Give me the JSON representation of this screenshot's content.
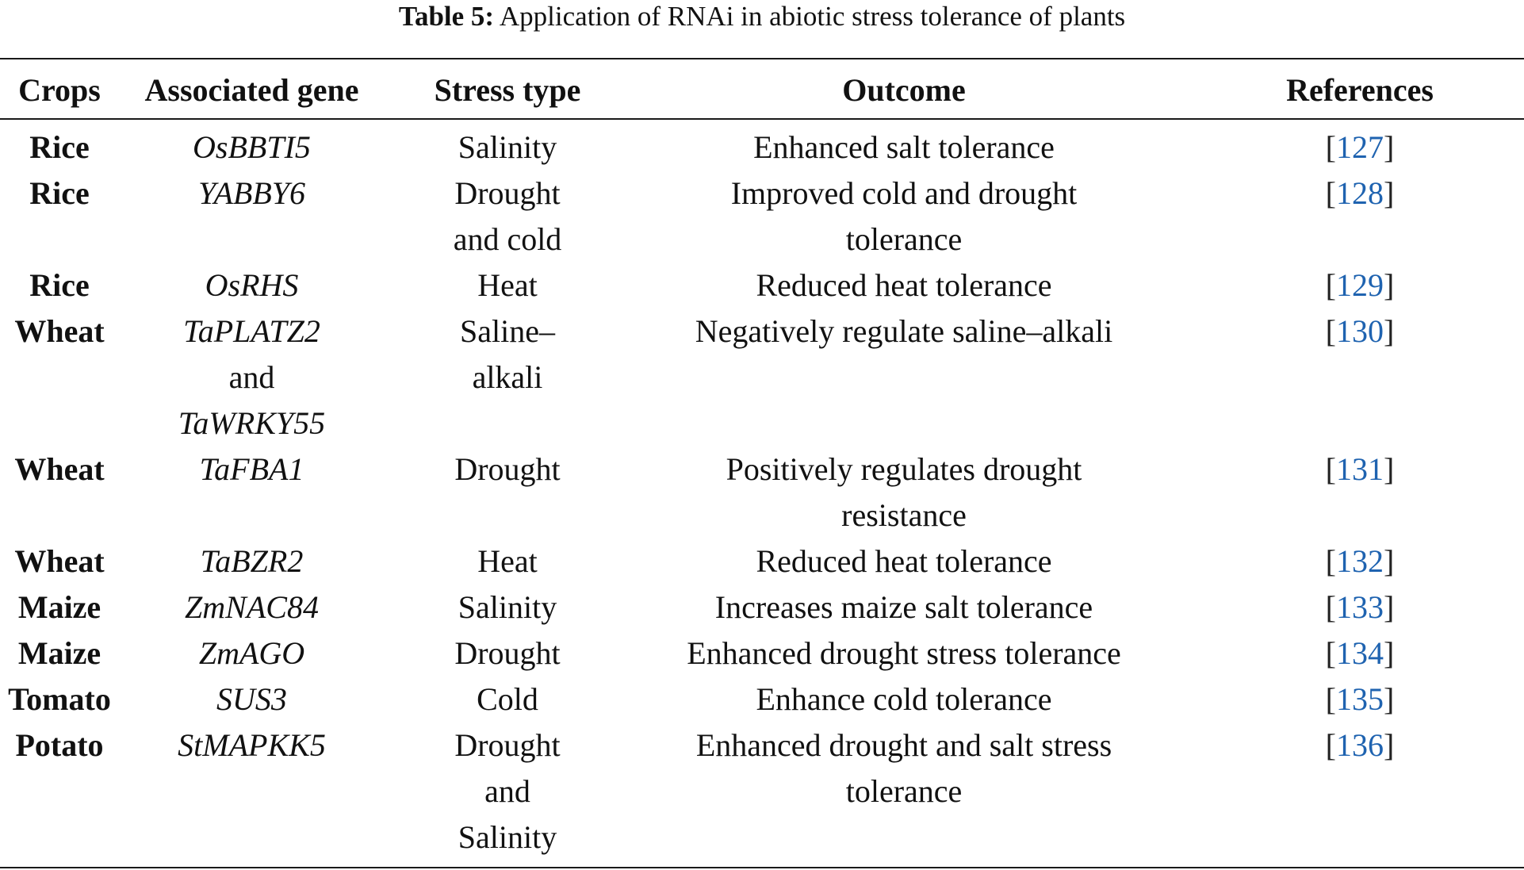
{
  "caption": {
    "label": "Table 5:",
    "text": "Application of RNAi in abiotic stress tolerance of plants"
  },
  "headers": {
    "crop": "Crops",
    "gene": "Associated gene",
    "stress": "Stress type",
    "outcome": "Outcome",
    "references": "References"
  },
  "rows": [
    {
      "crop": "Rice",
      "gene": [
        "OsBBTI5"
      ],
      "stress": [
        "Salinity"
      ],
      "outcome": [
        "Enhanced salt tolerance"
      ],
      "ref": "127"
    },
    {
      "crop": "Rice",
      "gene": [
        "YABBY6"
      ],
      "stress": [
        "Drought",
        "and cold"
      ],
      "outcome": [
        "Improved cold and drought",
        "tolerance"
      ],
      "ref": "128"
    },
    {
      "crop": "Rice",
      "gene": [
        "OsRHS"
      ],
      "stress": [
        "Heat"
      ],
      "outcome": [
        "Reduced heat tolerance"
      ],
      "ref": "129"
    },
    {
      "crop": "Wheat",
      "gene": [
        "TaPLATZ2",
        "and",
        "TaWRKY55"
      ],
      "stress": [
        "Saline–",
        "alkali"
      ],
      "outcome": [
        "Negatively regulate saline–alkali"
      ],
      "ref": "130"
    },
    {
      "crop": "Wheat",
      "gene": [
        "TaFBA1"
      ],
      "stress": [
        "Drought"
      ],
      "outcome": [
        "Positively regulates drought",
        "resistance"
      ],
      "ref": "131"
    },
    {
      "crop": "Wheat",
      "gene": [
        "TaBZR2"
      ],
      "stress": [
        "Heat"
      ],
      "outcome": [
        "Reduced heat tolerance"
      ],
      "ref": "132"
    },
    {
      "crop": "Maize",
      "gene": [
        "ZmNAC84"
      ],
      "stress": [
        "Salinity"
      ],
      "outcome": [
        "Increases maize salt tolerance"
      ],
      "ref": "133"
    },
    {
      "crop": "Maize",
      "gene": [
        "ZmAGO"
      ],
      "stress": [
        "Drought"
      ],
      "outcome": [
        "Enhanced drought stress tolerance"
      ],
      "ref": "134"
    },
    {
      "crop": "Tomato",
      "gene": [
        "SUS3"
      ],
      "stress": [
        "Cold"
      ],
      "outcome": [
        "Enhance cold tolerance"
      ],
      "ref": "135"
    },
    {
      "crop": "Potato",
      "gene": [
        "StMAPKK5"
      ],
      "stress": [
        "Drought",
        "and",
        "Salinity"
      ],
      "outcome": [
        "Enhanced drought and salt stress",
        "tolerance"
      ],
      "ref": "136"
    }
  ]
}
